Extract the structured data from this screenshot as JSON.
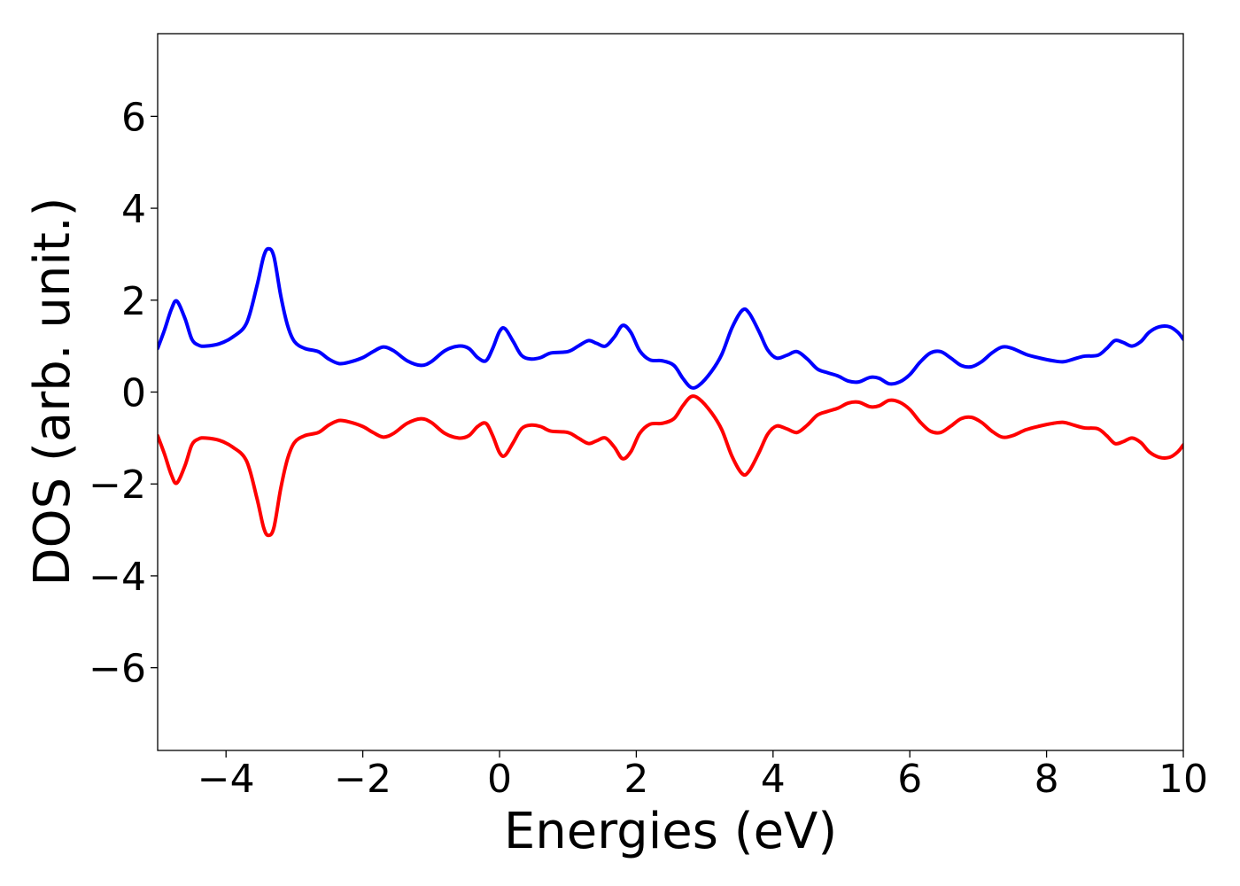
{
  "chart_data": {
    "type": "line",
    "title": "",
    "xlabel": "Energies (eV)",
    "ylabel": "DOS (arb. unit.)",
    "xlim": [
      -5,
      10
    ],
    "ylim": [
      -7.8,
      7.8
    ],
    "x_ticks": [
      -4,
      -2,
      0,
      2,
      4,
      6,
      8,
      10
    ],
    "x_tick_labels": [
      "−4",
      "−2",
      "0",
      "2",
      "4",
      "6",
      "8",
      "10"
    ],
    "y_ticks": [
      -6,
      -4,
      -2,
      0,
      2,
      4,
      6
    ],
    "y_tick_labels": [
      "−6",
      "−4",
      "−2",
      "0",
      "2",
      "4",
      "6"
    ],
    "grid": false,
    "legend": false,
    "series": [
      {
        "color": "#0000ff",
        "points": [
          [
            -5.0,
            0.95
          ],
          [
            -4.9,
            1.35
          ],
          [
            -4.8,
            1.8
          ],
          [
            -4.72,
            1.98
          ],
          [
            -4.6,
            1.6
          ],
          [
            -4.5,
            1.15
          ],
          [
            -4.4,
            1.02
          ],
          [
            -4.3,
            1.0
          ],
          [
            -4.1,
            1.05
          ],
          [
            -3.9,
            1.2
          ],
          [
            -3.7,
            1.5
          ],
          [
            -3.55,
            2.3
          ],
          [
            -3.45,
            2.95
          ],
          [
            -3.38,
            3.12
          ],
          [
            -3.3,
            2.95
          ],
          [
            -3.2,
            2.1
          ],
          [
            -3.1,
            1.45
          ],
          [
            -3.0,
            1.1
          ],
          [
            -2.85,
            0.95
          ],
          [
            -2.65,
            0.88
          ],
          [
            -2.5,
            0.72
          ],
          [
            -2.35,
            0.62
          ],
          [
            -2.2,
            0.65
          ],
          [
            -2.0,
            0.75
          ],
          [
            -1.85,
            0.88
          ],
          [
            -1.7,
            0.98
          ],
          [
            -1.55,
            0.9
          ],
          [
            -1.35,
            0.68
          ],
          [
            -1.15,
            0.58
          ],
          [
            -1.0,
            0.66
          ],
          [
            -0.8,
            0.9
          ],
          [
            -0.6,
            1.0
          ],
          [
            -0.45,
            0.95
          ],
          [
            -0.32,
            0.75
          ],
          [
            -0.2,
            0.68
          ],
          [
            -0.1,
            0.95
          ],
          [
            0.0,
            1.32
          ],
          [
            0.08,
            1.38
          ],
          [
            0.2,
            1.1
          ],
          [
            0.32,
            0.8
          ],
          [
            0.45,
            0.72
          ],
          [
            0.6,
            0.75
          ],
          [
            0.75,
            0.85
          ],
          [
            1.0,
            0.88
          ],
          [
            1.15,
            1.0
          ],
          [
            1.3,
            1.12
          ],
          [
            1.42,
            1.06
          ],
          [
            1.55,
            1.0
          ],
          [
            1.68,
            1.2
          ],
          [
            1.8,
            1.45
          ],
          [
            1.92,
            1.3
          ],
          [
            2.05,
            0.9
          ],
          [
            2.2,
            0.7
          ],
          [
            2.38,
            0.68
          ],
          [
            2.55,
            0.58
          ],
          [
            2.68,
            0.3
          ],
          [
            2.8,
            0.1
          ],
          [
            2.92,
            0.15
          ],
          [
            3.1,
            0.45
          ],
          [
            3.25,
            0.82
          ],
          [
            3.4,
            1.4
          ],
          [
            3.55,
            1.78
          ],
          [
            3.65,
            1.72
          ],
          [
            3.8,
            1.3
          ],
          [
            3.92,
            0.92
          ],
          [
            4.05,
            0.74
          ],
          [
            4.2,
            0.8
          ],
          [
            4.35,
            0.88
          ],
          [
            4.5,
            0.72
          ],
          [
            4.65,
            0.5
          ],
          [
            4.8,
            0.42
          ],
          [
            4.95,
            0.35
          ],
          [
            5.1,
            0.24
          ],
          [
            5.25,
            0.22
          ],
          [
            5.42,
            0.32
          ],
          [
            5.55,
            0.3
          ],
          [
            5.7,
            0.18
          ],
          [
            5.85,
            0.22
          ],
          [
            6.0,
            0.38
          ],
          [
            6.15,
            0.65
          ],
          [
            6.3,
            0.85
          ],
          [
            6.45,
            0.88
          ],
          [
            6.6,
            0.74
          ],
          [
            6.75,
            0.58
          ],
          [
            6.9,
            0.55
          ],
          [
            7.05,
            0.66
          ],
          [
            7.2,
            0.85
          ],
          [
            7.35,
            0.98
          ],
          [
            7.5,
            0.95
          ],
          [
            7.7,
            0.82
          ],
          [
            7.9,
            0.74
          ],
          [
            8.1,
            0.68
          ],
          [
            8.25,
            0.66
          ],
          [
            8.4,
            0.72
          ],
          [
            8.55,
            0.78
          ],
          [
            8.75,
            0.8
          ],
          [
            8.88,
            0.95
          ],
          [
            9.0,
            1.12
          ],
          [
            9.12,
            1.08
          ],
          [
            9.25,
            1.0
          ],
          [
            9.38,
            1.1
          ],
          [
            9.5,
            1.3
          ],
          [
            9.65,
            1.42
          ],
          [
            9.8,
            1.42
          ],
          [
            9.92,
            1.3
          ],
          [
            10.0,
            1.15
          ]
        ]
      },
      {
        "color": "#ff0000",
        "points": [
          [
            -5.0,
            -0.95
          ],
          [
            -4.9,
            -1.35
          ],
          [
            -4.8,
            -1.8
          ],
          [
            -4.72,
            -1.98
          ],
          [
            -4.6,
            -1.6
          ],
          [
            -4.5,
            -1.15
          ],
          [
            -4.4,
            -1.02
          ],
          [
            -4.3,
            -1.0
          ],
          [
            -4.1,
            -1.05
          ],
          [
            -3.9,
            -1.2
          ],
          [
            -3.7,
            -1.5
          ],
          [
            -3.55,
            -2.3
          ],
          [
            -3.45,
            -2.95
          ],
          [
            -3.38,
            -3.12
          ],
          [
            -3.3,
            -2.95
          ],
          [
            -3.2,
            -2.1
          ],
          [
            -3.1,
            -1.45
          ],
          [
            -3.0,
            -1.1
          ],
          [
            -2.85,
            -0.95
          ],
          [
            -2.65,
            -0.88
          ],
          [
            -2.5,
            -0.72
          ],
          [
            -2.35,
            -0.62
          ],
          [
            -2.2,
            -0.65
          ],
          [
            -2.0,
            -0.75
          ],
          [
            -1.85,
            -0.88
          ],
          [
            -1.7,
            -0.98
          ],
          [
            -1.55,
            -0.9
          ],
          [
            -1.35,
            -0.68
          ],
          [
            -1.15,
            -0.58
          ],
          [
            -1.0,
            -0.66
          ],
          [
            -0.8,
            -0.9
          ],
          [
            -0.6,
            -1.0
          ],
          [
            -0.45,
            -0.95
          ],
          [
            -0.32,
            -0.75
          ],
          [
            -0.2,
            -0.68
          ],
          [
            -0.1,
            -0.95
          ],
          [
            0.0,
            -1.32
          ],
          [
            0.08,
            -1.38
          ],
          [
            0.2,
            -1.1
          ],
          [
            0.32,
            -0.8
          ],
          [
            0.45,
            -0.72
          ],
          [
            0.6,
            -0.75
          ],
          [
            0.75,
            -0.85
          ],
          [
            1.0,
            -0.88
          ],
          [
            1.15,
            -1.0
          ],
          [
            1.3,
            -1.12
          ],
          [
            1.42,
            -1.06
          ],
          [
            1.55,
            -1.0
          ],
          [
            1.68,
            -1.2
          ],
          [
            1.8,
            -1.45
          ],
          [
            1.92,
            -1.3
          ],
          [
            2.05,
            -0.9
          ],
          [
            2.2,
            -0.7
          ],
          [
            2.38,
            -0.68
          ],
          [
            2.55,
            -0.58
          ],
          [
            2.68,
            -0.3
          ],
          [
            2.8,
            -0.1
          ],
          [
            2.92,
            -0.15
          ],
          [
            3.1,
            -0.45
          ],
          [
            3.25,
            -0.82
          ],
          [
            3.4,
            -1.4
          ],
          [
            3.55,
            -1.78
          ],
          [
            3.65,
            -1.72
          ],
          [
            3.8,
            -1.3
          ],
          [
            3.92,
            -0.92
          ],
          [
            4.05,
            -0.74
          ],
          [
            4.2,
            -0.8
          ],
          [
            4.35,
            -0.88
          ],
          [
            4.5,
            -0.72
          ],
          [
            4.65,
            -0.5
          ],
          [
            4.8,
            -0.42
          ],
          [
            4.95,
            -0.35
          ],
          [
            5.1,
            -0.24
          ],
          [
            5.25,
            -0.22
          ],
          [
            5.42,
            -0.32
          ],
          [
            5.55,
            -0.3
          ],
          [
            5.7,
            -0.18
          ],
          [
            5.85,
            -0.22
          ],
          [
            6.0,
            -0.38
          ],
          [
            6.15,
            -0.65
          ],
          [
            6.3,
            -0.85
          ],
          [
            6.45,
            -0.88
          ],
          [
            6.6,
            -0.74
          ],
          [
            6.75,
            -0.58
          ],
          [
            6.9,
            -0.55
          ],
          [
            7.05,
            -0.66
          ],
          [
            7.2,
            -0.85
          ],
          [
            7.35,
            -0.98
          ],
          [
            7.5,
            -0.95
          ],
          [
            7.7,
            -0.82
          ],
          [
            7.9,
            -0.74
          ],
          [
            8.1,
            -0.68
          ],
          [
            8.25,
            -0.66
          ],
          [
            8.4,
            -0.72
          ],
          [
            8.55,
            -0.78
          ],
          [
            8.75,
            -0.8
          ],
          [
            8.88,
            -0.95
          ],
          [
            9.0,
            -1.12
          ],
          [
            9.12,
            -1.08
          ],
          [
            9.25,
            -1.0
          ],
          [
            9.38,
            -1.1
          ],
          [
            9.5,
            -1.3
          ],
          [
            9.65,
            -1.42
          ],
          [
            9.8,
            -1.42
          ],
          [
            9.92,
            -1.3
          ],
          [
            10.0,
            -1.15
          ]
        ]
      }
    ]
  }
}
